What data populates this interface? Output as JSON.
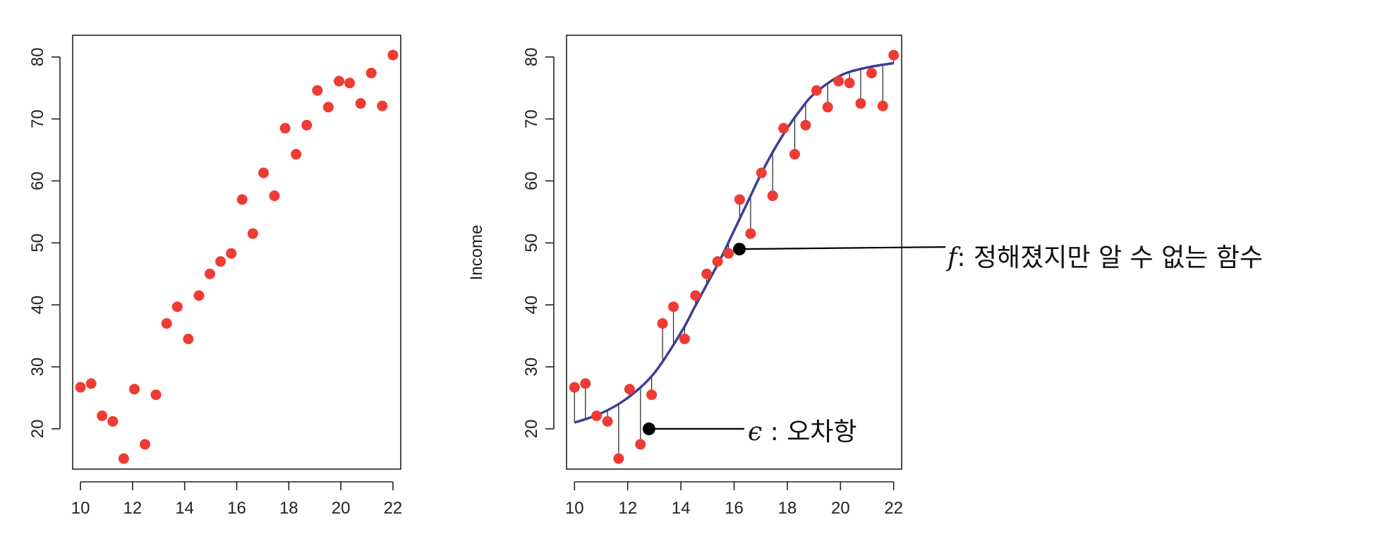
{
  "colors": {
    "point": "#ee3b33",
    "curve": "#3c3e94",
    "axis": "#222222",
    "annotation": "#000000"
  },
  "chart_data": [
    {
      "type": "scatter",
      "title": "",
      "xlabel": "",
      "ylabel": "",
      "xlim": [
        9.7,
        22.3
      ],
      "ylim": [
        13.5,
        83.5
      ],
      "x_ticks": [
        10,
        12,
        14,
        16,
        18,
        20,
        22
      ],
      "x_tick_labels": [
        "10",
        "12",
        "14",
        "16",
        "18",
        "20",
        "22"
      ],
      "y_ticks": [
        20,
        30,
        40,
        50,
        60,
        70,
        80
      ],
      "y_tick_labels": [
        "20",
        "30",
        "40",
        "50",
        "60",
        "70",
        "80"
      ],
      "grid": false,
      "series": [
        {
          "x": [
            10.0,
            10.41,
            10.83,
            11.24,
            11.66,
            12.07,
            12.48,
            12.9,
            13.31,
            13.72,
            14.14,
            14.55,
            14.97,
            15.38,
            15.79,
            16.21,
            16.62,
            17.03,
            17.45,
            17.86,
            18.28,
            18.69,
            19.1,
            19.52,
            19.93,
            20.34,
            20.76,
            21.17,
            21.59,
            22.0
          ],
          "y": [
            26.7,
            27.3,
            22.1,
            21.2,
            15.2,
            26.4,
            17.5,
            25.5,
            37.0,
            39.7,
            34.5,
            41.5,
            45.0,
            47.0,
            48.3,
            57.0,
            51.5,
            61.3,
            57.6,
            68.5,
            64.3,
            69.0,
            74.6,
            71.9,
            76.1,
            75.8,
            72.5,
            77.4,
            72.1,
            80.3
          ]
        }
      ]
    },
    {
      "type": "scatter",
      "title": "",
      "xlabel": "",
      "ylabel": "Income",
      "xlim": [
        9.7,
        22.3
      ],
      "ylim": [
        13.5,
        83.5
      ],
      "x_ticks": [
        10,
        12,
        14,
        16,
        18,
        20,
        22
      ],
      "x_tick_labels": [
        "10",
        "12",
        "14",
        "16",
        "18",
        "20",
        "22"
      ],
      "y_ticks": [
        20,
        30,
        40,
        50,
        60,
        70,
        80
      ],
      "y_tick_labels": [
        "20",
        "30",
        "40",
        "50",
        "60",
        "70",
        "80"
      ],
      "grid": false,
      "series": [
        {
          "x": [
            10.0,
            10.41,
            10.83,
            11.24,
            11.66,
            12.07,
            12.48,
            12.9,
            13.31,
            13.72,
            14.14,
            14.55,
            14.97,
            15.38,
            15.79,
            16.21,
            16.62,
            17.03,
            17.45,
            17.86,
            18.28,
            18.69,
            19.1,
            19.52,
            19.93,
            20.34,
            20.76,
            21.17,
            21.59,
            22.0
          ],
          "y": [
            26.7,
            27.3,
            22.1,
            21.2,
            15.2,
            26.4,
            17.5,
            25.5,
            37.0,
            39.7,
            34.5,
            41.5,
            45.0,
            47.0,
            48.3,
            57.0,
            51.5,
            61.3,
            57.6,
            68.5,
            64.3,
            69.0,
            74.6,
            71.9,
            76.1,
            75.8,
            72.5,
            77.4,
            72.1,
            80.3
          ]
        }
      ],
      "fitted_curve": {
        "x": [
          10.0,
          11.0,
          12.0,
          13.0,
          14.0,
          14.5,
          15.0,
          15.5,
          16.0,
          16.5,
          17.0,
          17.5,
          18.0,
          18.5,
          19.0,
          20.0,
          21.0,
          22.0
        ],
        "y": [
          21.0,
          22.5,
          25.0,
          29.0,
          35.5,
          39.5,
          43.5,
          47.5,
          52.0,
          56.5,
          61.0,
          65.0,
          68.5,
          71.5,
          74.0,
          77.0,
          78.3,
          79.0
        ]
      },
      "annotations": [
        {
          "symbol": "f",
          "text": ": 정해졌지만 알 수 없는 함수",
          "x": 16.2,
          "y": 49.0
        },
        {
          "symbol": "ϵ",
          "text": " : 오차항",
          "x": 12.8,
          "y": 20.0
        }
      ]
    }
  ]
}
